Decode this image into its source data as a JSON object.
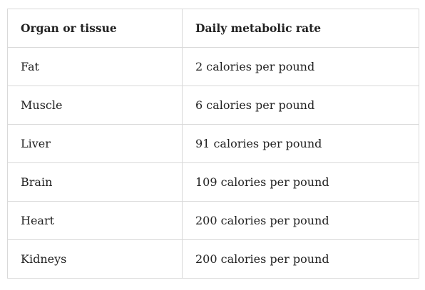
{
  "table": {
    "headers": [
      "Organ or tissue",
      "Daily metabolic rate"
    ],
    "rows": [
      [
        "Fat",
        "2 calories per pound"
      ],
      [
        "Muscle",
        "6 calories per pound"
      ],
      [
        "Liver",
        "91 calories per pound"
      ],
      [
        "Brain",
        "109 calories per pound"
      ],
      [
        "Heart",
        "200 calories per pound"
      ],
      [
        "Kidneys",
        "200 calories per pound"
      ]
    ]
  }
}
